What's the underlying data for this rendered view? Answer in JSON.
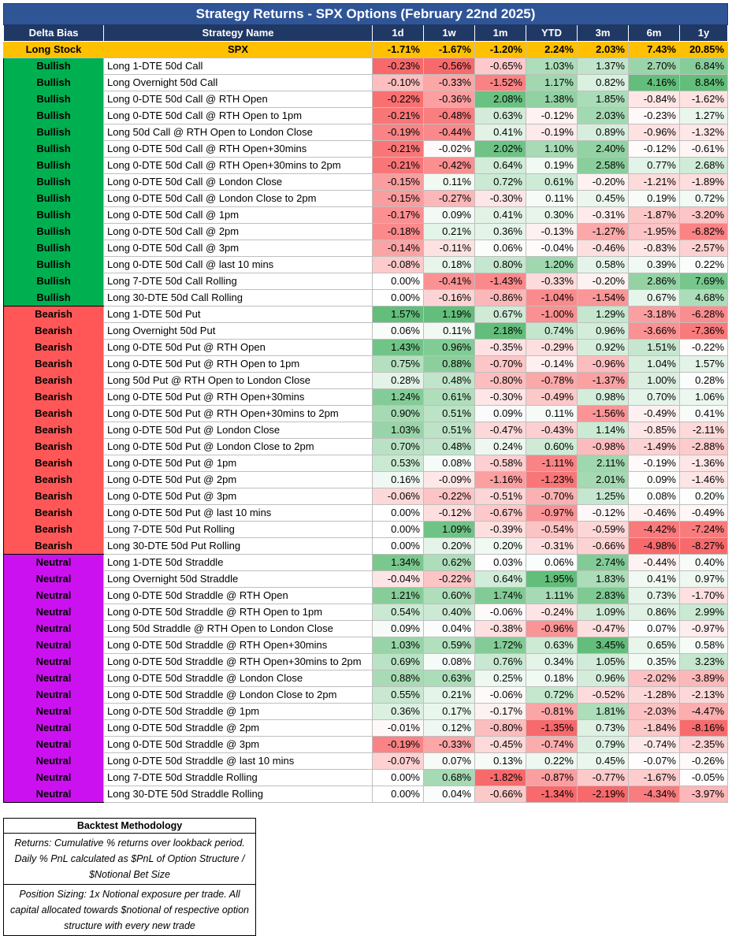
{
  "title": "Strategy Returns - SPX Options (February 22nd 2025)",
  "columns": [
    "Delta Bias",
    "Strategy Name",
    "1d",
    "1w",
    "1m",
    "YTD",
    "3m",
    "6m",
    "1y"
  ],
  "benchmark": [
    "Long Stock",
    "SPX",
    "-1.71%",
    "-1.67%",
    "-1.20%",
    "2.24%",
    "2.03%",
    "7.43%",
    "20.85%"
  ],
  "rows": [
    [
      "Bullish",
      "Long 1-DTE 50d Call",
      "-0.23%",
      "-0.56%",
      "-0.65%",
      "1.03%",
      "1.37%",
      "2.70%",
      "6.84%"
    ],
    [
      "Bullish",
      "Long Overnight 50d Call",
      "-0.10%",
      "-0.33%",
      "-1.52%",
      "1.17%",
      "0.82%",
      "4.16%",
      "8.84%"
    ],
    [
      "Bullish",
      "Long 0-DTE 50d Call @ RTH Open",
      "-0.22%",
      "-0.36%",
      "2.08%",
      "1.38%",
      "1.85%",
      "-0.84%",
      "-1.62%"
    ],
    [
      "Bullish",
      "Long 0-DTE 50d Call @ RTH Open to 1pm",
      "-0.21%",
      "-0.48%",
      "0.63%",
      "-0.12%",
      "2.03%",
      "-0.23%",
      "1.27%"
    ],
    [
      "Bullish",
      "Long 50d Call @ RTH Open to London Close",
      "-0.19%",
      "-0.44%",
      "0.41%",
      "-0.19%",
      "0.89%",
      "-0.96%",
      "-1.32%"
    ],
    [
      "Bullish",
      "Long 0-DTE 50d Call @ RTH Open+30mins",
      "-0.21%",
      "-0.02%",
      "2.02%",
      "1.10%",
      "2.40%",
      "-0.12%",
      "-0.61%"
    ],
    [
      "Bullish",
      "Long 0-DTE 50d Call @ RTH Open+30mins to 2pm",
      "-0.21%",
      "-0.42%",
      "0.64%",
      "0.19%",
      "2.58%",
      "0.77%",
      "2.68%"
    ],
    [
      "Bullish",
      "Long 0-DTE 50d Call @ London Close",
      "-0.15%",
      "0.11%",
      "0.72%",
      "0.61%",
      "-0.20%",
      "-1.21%",
      "-1.89%"
    ],
    [
      "Bullish",
      "Long 0-DTE 50d Call @ London Close to 2pm",
      "-0.15%",
      "-0.27%",
      "-0.30%",
      "0.11%",
      "0.45%",
      "0.19%",
      "0.72%"
    ],
    [
      "Bullish",
      "Long 0-DTE 50d Call @ 1pm",
      "-0.17%",
      "0.09%",
      "0.41%",
      "0.30%",
      "-0.31%",
      "-1.87%",
      "-3.20%"
    ],
    [
      "Bullish",
      "Long 0-DTE 50d Call @ 2pm",
      "-0.18%",
      "0.21%",
      "0.36%",
      "-0.13%",
      "-1.27%",
      "-1.95%",
      "-6.82%"
    ],
    [
      "Bullish",
      "Long 0-DTE 50d Call @ 3pm",
      "-0.14%",
      "-0.11%",
      "0.06%",
      "-0.04%",
      "-0.46%",
      "-0.83%",
      "-2.57%"
    ],
    [
      "Bullish",
      "Long 0-DTE 50d Call @ last 10 mins",
      "-0.08%",
      "0.18%",
      "0.80%",
      "1.20%",
      "0.58%",
      "0.39%",
      "0.22%"
    ],
    [
      "Bullish",
      "Long 7-DTE 50d Call Rolling",
      "0.00%",
      "-0.41%",
      "-1.43%",
      "-0.33%",
      "-0.20%",
      "2.86%",
      "7.69%"
    ],
    [
      "Bullish",
      "Long 30-DTE 50d Call Rolling",
      "0.00%",
      "-0.16%",
      "-0.86%",
      "-1.04%",
      "-1.54%",
      "0.67%",
      "4.68%"
    ],
    [
      "Bearish",
      "Long 1-DTE 50d Put",
      "1.57%",
      "1.19%",
      "0.67%",
      "-1.00%",
      "1.29%",
      "-3.18%",
      "-6.28%"
    ],
    [
      "Bearish",
      "Long Overnight 50d Put",
      "0.06%",
      "0.11%",
      "2.18%",
      "0.74%",
      "0.96%",
      "-3.66%",
      "-7.36%"
    ],
    [
      "Bearish",
      "Long 0-DTE 50d Put @ RTH Open",
      "1.43%",
      "0.96%",
      "-0.35%",
      "-0.29%",
      "0.92%",
      "1.51%",
      "-0.22%"
    ],
    [
      "Bearish",
      "Long 0-DTE 50d Put @ RTH Open to 1pm",
      "0.75%",
      "0.88%",
      "-0.70%",
      "-0.14%",
      "-0.96%",
      "1.04%",
      "1.57%"
    ],
    [
      "Bearish",
      "Long 50d Put @ RTH Open to London Close",
      "0.28%",
      "0.48%",
      "-0.80%",
      "-0.78%",
      "-1.37%",
      "1.00%",
      "0.28%"
    ],
    [
      "Bearish",
      "Long 0-DTE 50d Put @ RTH Open+30mins",
      "1.24%",
      "0.61%",
      "-0.30%",
      "-0.49%",
      "0.98%",
      "0.70%",
      "1.06%"
    ],
    [
      "Bearish",
      "Long 0-DTE 50d Put @ RTH Open+30mins to 2pm",
      "0.90%",
      "0.51%",
      "0.09%",
      "0.11%",
      "-1.56%",
      "-0.49%",
      "0.41%"
    ],
    [
      "Bearish",
      "Long 0-DTE 50d Put @ London Close",
      "1.03%",
      "0.51%",
      "-0.47%",
      "-0.43%",
      "1.14%",
      "-0.85%",
      "-2.11%"
    ],
    [
      "Bearish",
      "Long 0-DTE 50d Put @ London Close to 2pm",
      "0.70%",
      "0.48%",
      "0.24%",
      "0.60%",
      "-0.98%",
      "-1.49%",
      "-2.88%"
    ],
    [
      "Bearish",
      "Long 0-DTE 50d Put @ 1pm",
      "0.53%",
      "0.08%",
      "-0.58%",
      "-1.11%",
      "2.11%",
      "-0.19%",
      "-1.36%"
    ],
    [
      "Bearish",
      "Long 0-DTE 50d Put @ 2pm",
      "0.16%",
      "-0.09%",
      "-1.16%",
      "-1.23%",
      "2.01%",
      "0.09%",
      "-1.46%"
    ],
    [
      "Bearish",
      "Long 0-DTE 50d Put @ 3pm",
      "-0.06%",
      "-0.22%",
      "-0.51%",
      "-0.70%",
      "1.25%",
      "0.08%",
      "0.20%"
    ],
    [
      "Bearish",
      "Long 0-DTE 50d Put @ last 10 mins",
      "0.00%",
      "-0.12%",
      "-0.67%",
      "-0.97%",
      "-0.12%",
      "-0.46%",
      "-0.49%"
    ],
    [
      "Bearish",
      "Long 7-DTE 50d Put Rolling",
      "0.00%",
      "1.09%",
      "-0.39%",
      "-0.54%",
      "-0.59%",
      "-4.42%",
      "-7.24%"
    ],
    [
      "Bearish",
      "Long 30-DTE 50d Put Rolling",
      "0.00%",
      "0.20%",
      "0.20%",
      "-0.31%",
      "-0.66%",
      "-4.98%",
      "-8.27%"
    ],
    [
      "Neutral",
      "Long 1-DTE 50d Straddle",
      "1.34%",
      "0.62%",
      "0.03%",
      "0.06%",
      "2.74%",
      "-0.44%",
      "0.40%"
    ],
    [
      "Neutral",
      "Long Overnight 50d Straddle",
      "-0.04%",
      "-0.22%",
      "0.64%",
      "1.95%",
      "1.83%",
      "0.41%",
      "0.97%"
    ],
    [
      "Neutral",
      "Long 0-DTE 50d Straddle @ RTH Open",
      "1.21%",
      "0.60%",
      "1.74%",
      "1.11%",
      "2.83%",
      "0.73%",
      "-1.70%"
    ],
    [
      "Neutral",
      "Long 0-DTE 50d Straddle @ RTH Open to 1pm",
      "0.54%",
      "0.40%",
      "-0.06%",
      "-0.24%",
      "1.09%",
      "0.86%",
      "2.99%"
    ],
    [
      "Neutral",
      "Long 50d Straddle @ RTH Open to London Close",
      "0.09%",
      "0.04%",
      "-0.38%",
      "-0.96%",
      "-0.47%",
      "0.07%",
      "-0.97%"
    ],
    [
      "Neutral",
      "Long 0-DTE 50d Straddle @ RTH Open+30mins",
      "1.03%",
      "0.59%",
      "1.72%",
      "0.63%",
      "3.45%",
      "0.65%",
      "0.58%"
    ],
    [
      "Neutral",
      "Long 0-DTE 50d Straddle @ RTH Open+30mins to 2pm",
      "0.69%",
      "0.08%",
      "0.76%",
      "0.34%",
      "1.05%",
      "0.35%",
      "3.23%"
    ],
    [
      "Neutral",
      "Long 0-DTE 50d Straddle @ London Close",
      "0.88%",
      "0.63%",
      "0.25%",
      "0.18%",
      "0.96%",
      "-2.02%",
      "-3.89%"
    ],
    [
      "Neutral",
      "Long 0-DTE 50d Straddle @ London Close to 2pm",
      "0.55%",
      "0.21%",
      "-0.06%",
      "0.72%",
      "-0.52%",
      "-1.28%",
      "-2.13%"
    ],
    [
      "Neutral",
      "Long 0-DTE 50d Straddle @ 1pm",
      "0.36%",
      "0.17%",
      "-0.17%",
      "-0.81%",
      "1.81%",
      "-2.03%",
      "-4.47%"
    ],
    [
      "Neutral",
      "Long 0-DTE 50d Straddle @ 2pm",
      "-0.01%",
      "0.12%",
      "-0.80%",
      "-1.35%",
      "0.73%",
      "-1.84%",
      "-8.16%"
    ],
    [
      "Neutral",
      "Long 0-DTE 50d Straddle @ 3pm",
      "-0.19%",
      "-0.33%",
      "-0.45%",
      "-0.74%",
      "0.79%",
      "-0.74%",
      "-2.35%"
    ],
    [
      "Neutral",
      "Long 0-DTE 50d Straddle @ last 10 mins",
      "-0.07%",
      "0.07%",
      "0.13%",
      "0.22%",
      "0.45%",
      "-0.07%",
      "-0.26%"
    ],
    [
      "Neutral",
      "Long 7-DTE 50d Straddle Rolling",
      "0.00%",
      "0.68%",
      "-1.82%",
      "-0.87%",
      "-0.77%",
      "-1.67%",
      "-0.05%"
    ],
    [
      "Neutral",
      "Long 30-DTE 50d Straddle Rolling",
      "0.00%",
      "0.04%",
      "-0.66%",
      "-1.34%",
      "-2.19%",
      "-4.34%",
      "-3.97%"
    ]
  ],
  "methodology": {
    "title": "Backtest Methodology",
    "paragraphs": [
      "Returns: Cumulative % returns over lookback period. Daily % PnL calculated as $PnL of Option Structure / $Notional Bet Size",
      "Position Sizing: 1x Notional exposure per trade. All capital allocated towards $notional of respective option structure with every new trade"
    ]
  }
}
